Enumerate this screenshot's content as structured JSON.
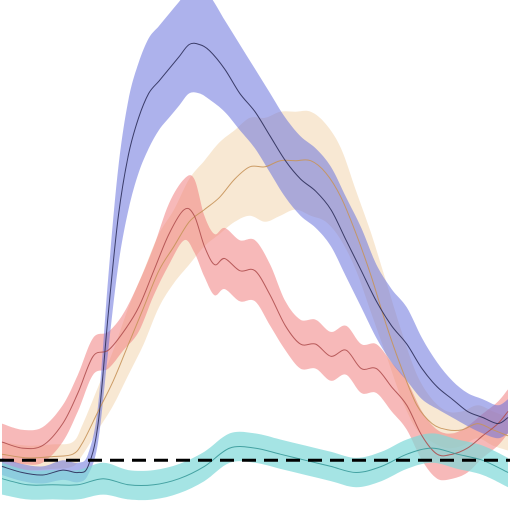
{
  "chart_data": {
    "type": "line",
    "title": "",
    "xlabel": "",
    "ylabel": "",
    "grid": false,
    "legend": "none",
    "x_range": [
      0,
      100
    ],
    "y_range": [
      -0.3,
      3.6
    ],
    "baseline": {
      "y": 0,
      "style": "dashed",
      "color": "#000000"
    },
    "series": [
      {
        "color": "#f4d9b6",
        "line_color": "#c7935a",
        "band_alpha": 0.6,
        "x": [
          0,
          5,
          10,
          14,
          16,
          19,
          22,
          25,
          28,
          31,
          34,
          37,
          40,
          43,
          46,
          49,
          52,
          55,
          58,
          61,
          64,
          67,
          70,
          73,
          76,
          79,
          82,
          85,
          88,
          91,
          94,
          97,
          100
        ],
        "mean": [
          0.05,
          0.02,
          0.03,
          0.05,
          0.15,
          0.4,
          0.65,
          0.95,
          1.25,
          1.55,
          1.75,
          1.95,
          2.05,
          2.15,
          2.3,
          2.4,
          2.4,
          2.45,
          2.45,
          2.45,
          2.35,
          2.15,
          1.85,
          1.5,
          1.1,
          0.75,
          0.45,
          0.3,
          0.25,
          0.25,
          0.3,
          0.25,
          0.2
        ],
        "lower": [
          -0.05,
          -0.08,
          -0.07,
          -0.05,
          0.05,
          0.25,
          0.45,
          0.7,
          0.95,
          1.25,
          1.45,
          1.6,
          1.75,
          1.85,
          1.95,
          2.0,
          1.95,
          2.0,
          2.05,
          2.0,
          1.95,
          1.8,
          1.55,
          1.2,
          0.85,
          0.5,
          0.25,
          0.15,
          0.1,
          0.12,
          0.18,
          0.12,
          0.08
        ],
        "upper": [
          0.15,
          0.12,
          0.13,
          0.15,
          0.3,
          0.6,
          0.9,
          1.25,
          1.55,
          1.85,
          2.05,
          2.3,
          2.45,
          2.6,
          2.7,
          2.8,
          2.8,
          2.85,
          2.85,
          2.85,
          2.75,
          2.55,
          2.2,
          1.85,
          1.45,
          1.05,
          0.7,
          0.5,
          0.4,
          0.4,
          0.45,
          0.4,
          0.35
        ]
      },
      {
        "color": "#f08080",
        "line_color": "#b05050",
        "band_alpha": 0.55,
        "x": [
          0,
          4,
          8,
          12,
          15,
          18,
          21,
          24,
          27,
          30,
          33,
          36,
          38,
          40,
          42,
          44,
          47,
          50,
          53,
          56,
          59,
          62,
          65,
          68,
          71,
          74,
          77,
          80,
          83,
          86,
          89,
          92,
          95,
          98,
          100
        ],
        "mean": [
          0.15,
          0.1,
          0.12,
          0.3,
          0.55,
          0.85,
          0.9,
          1.05,
          1.25,
          1.55,
          1.85,
          2.05,
          2.0,
          1.75,
          1.6,
          1.65,
          1.55,
          1.55,
          1.35,
          1.1,
          0.95,
          0.95,
          0.85,
          0.9,
          0.75,
          0.75,
          0.6,
          0.45,
          0.2,
          0.05,
          0.05,
          0.1,
          0.2,
          0.3,
          0.4
        ],
        "lower": [
          0.0,
          -0.03,
          -0.02,
          0.15,
          0.4,
          0.7,
          0.75,
          0.9,
          1.05,
          1.35,
          1.6,
          1.8,
          1.7,
          1.5,
          1.35,
          1.4,
          1.3,
          1.3,
          1.1,
          0.9,
          0.75,
          0.75,
          0.65,
          0.7,
          0.55,
          0.55,
          0.4,
          0.25,
          0.0,
          -0.15,
          -0.15,
          -0.1,
          0.02,
          0.12,
          0.22
        ],
        "upper": [
          0.3,
          0.25,
          0.27,
          0.45,
          0.7,
          1.0,
          1.05,
          1.2,
          1.45,
          1.75,
          2.1,
          2.3,
          2.3,
          2.0,
          1.85,
          1.9,
          1.8,
          1.8,
          1.6,
          1.3,
          1.15,
          1.15,
          1.05,
          1.1,
          0.95,
          0.95,
          0.8,
          0.65,
          0.4,
          0.25,
          0.22,
          0.28,
          0.38,
          0.48,
          0.58
        ]
      },
      {
        "color": "#6a72dc",
        "line_color": "#2d2f5a",
        "band_alpha": 0.55,
        "x": [
          0,
          4,
          8,
          12,
          15,
          17,
          19,
          21,
          23,
          25,
          27,
          29,
          31,
          33,
          35,
          37,
          39,
          41,
          44,
          47,
          50,
          53,
          56,
          59,
          62,
          65,
          68,
          71,
          74,
          77,
          80,
          83,
          86,
          89,
          92,
          95,
          98,
          100
        ],
        "mean": [
          -0.05,
          -0.1,
          -0.12,
          -0.08,
          -0.1,
          -0.05,
          0.3,
          1.2,
          2.0,
          2.5,
          2.8,
          3.0,
          3.1,
          3.2,
          3.3,
          3.4,
          3.4,
          3.35,
          3.2,
          3.0,
          2.85,
          2.65,
          2.45,
          2.3,
          2.2,
          2.05,
          1.8,
          1.55,
          1.3,
          1.1,
          0.95,
          0.75,
          0.6,
          0.5,
          0.4,
          0.35,
          0.3,
          0.35
        ],
        "lower": [
          -0.12,
          -0.17,
          -0.19,
          -0.16,
          -0.18,
          -0.12,
          0.15,
          0.9,
          1.6,
          2.05,
          2.35,
          2.55,
          2.7,
          2.8,
          2.9,
          3.0,
          3.0,
          2.95,
          2.85,
          2.7,
          2.55,
          2.35,
          2.15,
          2.0,
          1.9,
          1.75,
          1.5,
          1.25,
          1.0,
          0.8,
          0.65,
          0.5,
          0.42,
          0.35,
          0.28,
          0.22,
          0.18,
          0.22
        ],
        "upper": [
          0.02,
          -0.03,
          -0.05,
          0.0,
          -0.02,
          0.05,
          0.45,
          1.5,
          2.4,
          2.95,
          3.25,
          3.45,
          3.55,
          3.65,
          3.75,
          3.85,
          3.85,
          3.8,
          3.6,
          3.4,
          3.2,
          3.0,
          2.8,
          2.65,
          2.55,
          2.4,
          2.15,
          1.9,
          1.6,
          1.4,
          1.25,
          1.0,
          0.8,
          0.65,
          0.55,
          0.5,
          0.45,
          0.5
        ]
      },
      {
        "color": "#7fd8d8",
        "line_color": "#3a9a9a",
        "band_alpha": 0.7,
        "x": [
          0,
          5,
          10,
          15,
          20,
          25,
          30,
          35,
          40,
          45,
          50,
          55,
          60,
          65,
          70,
          75,
          80,
          85,
          90,
          95,
          100
        ],
        "mean": [
          -0.15,
          -0.2,
          -0.2,
          -0.2,
          -0.15,
          -0.2,
          -0.2,
          -0.15,
          -0.05,
          0.1,
          0.1,
          0.05,
          0.0,
          -0.05,
          -0.1,
          -0.05,
          0.05,
          0.1,
          0.05,
          0.0,
          -0.1
        ],
        "lower": [
          -0.28,
          -0.32,
          -0.32,
          -0.32,
          -0.28,
          -0.32,
          -0.32,
          -0.27,
          -0.17,
          -0.02,
          -0.02,
          -0.07,
          -0.12,
          -0.17,
          -0.22,
          -0.17,
          -0.07,
          -0.02,
          -0.07,
          -0.12,
          -0.22
        ],
        "upper": [
          -0.02,
          -0.08,
          -0.08,
          -0.08,
          -0.02,
          -0.08,
          -0.08,
          -0.03,
          0.07,
          0.22,
          0.22,
          0.17,
          0.12,
          0.07,
          0.02,
          0.07,
          0.17,
          0.22,
          0.17,
          0.12,
          0.02
        ]
      }
    ]
  }
}
